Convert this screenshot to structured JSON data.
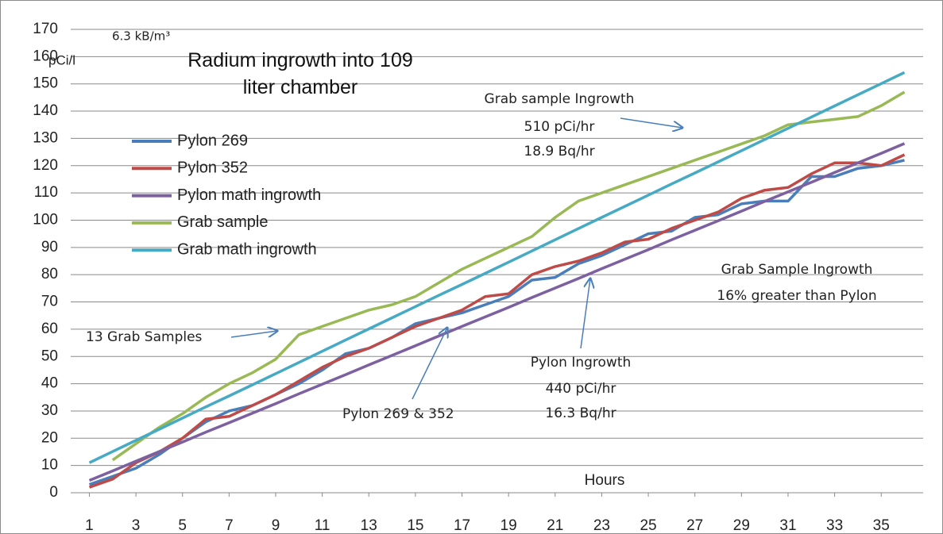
{
  "chart_data": {
    "type": "line",
    "title": "Radium ingrowth into 109 liter chamber",
    "y_label": "pCi/l",
    "x_label": "Hours",
    "annotations": [
      "6.3 kB/m³",
      "Grab sample Ingrowth",
      "510 pCi/hr",
      "18.9 Bq/hr",
      "Grab Sample Ingrowth",
      "16% greater than Pylon",
      "13 Grab Samples",
      "Pylon Ingrowth",
      "440 pCi/hr",
      "16.3 Bq/hr",
      "Pylon 269 & 352"
    ],
    "x": [
      1,
      2,
      3,
      4,
      5,
      6,
      7,
      8,
      9,
      10,
      11,
      12,
      13,
      14,
      15,
      16,
      17,
      18,
      19,
      20,
      21,
      22,
      23,
      24,
      25,
      26,
      27,
      28,
      29,
      30,
      31,
      32,
      33,
      34,
      35,
      36
    ],
    "xlim": [
      0.2,
      36.8
    ],
    "xticks": [
      1,
      3,
      5,
      7,
      9,
      11,
      13,
      15,
      17,
      19,
      21,
      23,
      25,
      27,
      29,
      31,
      33,
      35
    ],
    "ylim": [
      0,
      170
    ],
    "yticks": [
      0,
      10,
      20,
      30,
      40,
      50,
      60,
      70,
      80,
      90,
      100,
      110,
      120,
      130,
      140,
      150,
      160,
      170
    ],
    "grid": true,
    "legend": "upper left",
    "series": [
      {
        "name": "Pylon 269",
        "color": "#4a7ebb",
        "values": [
          3,
          6,
          9,
          14,
          20,
          26,
          30,
          32,
          36,
          40,
          45,
          51,
          53,
          57,
          62,
          64,
          66,
          69,
          72,
          78,
          79,
          84,
          87,
          91,
          95,
          96,
          101,
          102,
          106,
          107,
          107,
          116,
          116,
          119,
          120,
          122
        ]
      },
      {
        "name": "Pylon 352",
        "color": "#be4b48",
        "values": [
          2,
          5,
          11,
          15,
          20,
          27,
          28,
          32,
          36,
          41,
          46,
          50,
          53,
          57,
          61,
          64,
          67,
          72,
          73,
          80,
          83,
          85,
          88,
          92,
          93,
          97,
          100,
          103,
          108,
          111,
          112,
          117,
          121,
          121,
          120,
          124
        ]
      },
      {
        "name": "Pylon math ingrowth",
        "color": "#7d60a0",
        "values": [
          4.5,
          8.0,
          11.6,
          15.1,
          18.6,
          22.2,
          25.7,
          29.2,
          32.7,
          36.3,
          39.8,
          43.3,
          46.9,
          50.4,
          53.9,
          57.5,
          61.0,
          64.5,
          68.0,
          71.6,
          75.1,
          78.6,
          82.2,
          85.7,
          89.2,
          92.8,
          96.3,
          99.8,
          103.3,
          106.9,
          110.4,
          113.9,
          117.5,
          121.0,
          124.5,
          128.1
        ]
      },
      {
        "name": "Grab sample",
        "color": "#98b954",
        "values": [
          null,
          12,
          18,
          24,
          29,
          35,
          40,
          44,
          49,
          58,
          61,
          64,
          67,
          69,
          72,
          77,
          82,
          86,
          90,
          94,
          101,
          107,
          110,
          113,
          116,
          119,
          122,
          125,
          128,
          131,
          135,
          136,
          137,
          138,
          142,
          147
        ]
      },
      {
        "name": "Grab math ingrowth",
        "color": "#46aac5",
        "values": [
          11,
          15.1,
          19.2,
          23.3,
          27.4,
          31.5,
          35.5,
          39.6,
          43.7,
          47.8,
          51.9,
          56.0,
          60.1,
          64.2,
          68.3,
          72.4,
          76.4,
          80.5,
          84.6,
          88.7,
          92.8,
          96.9,
          101.0,
          105.1,
          109.2,
          113.3,
          117.3,
          121.4,
          125.5,
          129.6,
          133.7,
          137.8,
          141.9,
          146.0,
          150.1,
          154.2
        ]
      }
    ]
  }
}
